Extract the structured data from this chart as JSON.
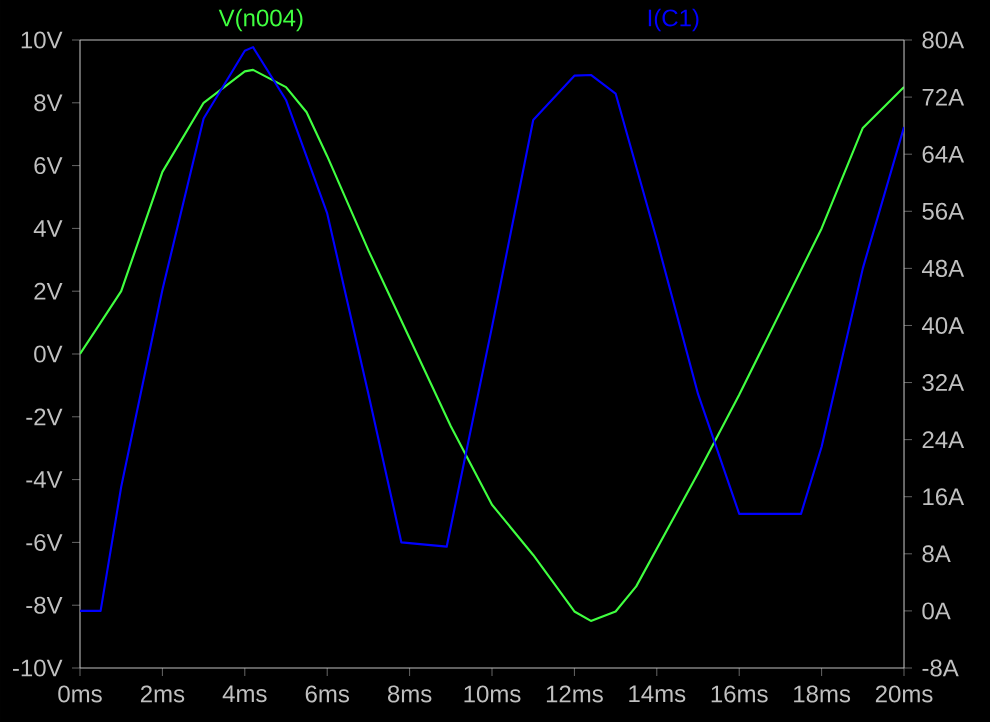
{
  "chart_data": {
    "type": "line",
    "legend": "top",
    "line_style": "solid",
    "xlim": [
      0,
      20
    ],
    "xticks": [
      {
        "value": 0,
        "label": "0ms"
      },
      {
        "value": 2,
        "label": "2ms"
      },
      {
        "value": 4,
        "label": "4ms"
      },
      {
        "value": 6,
        "label": "6ms"
      },
      {
        "value": 8,
        "label": "8ms"
      },
      {
        "value": 10,
        "label": "10ms"
      },
      {
        "value": 12,
        "label": "12ms"
      },
      {
        "value": 14,
        "label": "14ms"
      },
      {
        "value": 16,
        "label": "16ms"
      },
      {
        "value": 18,
        "label": "18ms"
      },
      {
        "value": 20,
        "label": "20ms"
      }
    ],
    "ylim": [
      -10,
      10
    ],
    "yticks": [
      {
        "value": -10,
        "label": "-10V"
      },
      {
        "value": -8,
        "label": "-8V"
      },
      {
        "value": -6,
        "label": "-6V"
      },
      {
        "value": -4,
        "label": "-4V"
      },
      {
        "value": -2,
        "label": "-2V"
      },
      {
        "value": 0,
        "label": "0V"
      },
      {
        "value": 2,
        "label": "2V"
      },
      {
        "value": 4,
        "label": "4V"
      },
      {
        "value": 6,
        "label": "6V"
      },
      {
        "value": 8,
        "label": "8V"
      },
      {
        "value": 10,
        "label": "10V"
      }
    ],
    "y2lim": [
      -8,
      80
    ],
    "y2ticks": [
      {
        "value": -8,
        "label": "-8A"
      },
      {
        "value": 0,
        "label": "0A"
      },
      {
        "value": 8,
        "label": "8A"
      },
      {
        "value": 16,
        "label": "16A"
      },
      {
        "value": 24,
        "label": "24A"
      },
      {
        "value": 32,
        "label": "32A"
      },
      {
        "value": 40,
        "label": "40A"
      },
      {
        "value": 48,
        "label": "48A"
      },
      {
        "value": 56,
        "label": "56A"
      },
      {
        "value": 64,
        "label": "64A"
      },
      {
        "value": 72,
        "label": "72A"
      },
      {
        "value": 80,
        "label": "80A"
      }
    ],
    "series": [
      {
        "name": "V(n004)",
        "color": "#40ff40",
        "x": [
          0,
          0.5,
          1,
          2,
          3,
          4,
          4.2,
          5,
          5.5,
          6,
          7,
          8,
          9,
          10,
          11,
          12,
          12.4,
          13,
          13.5,
          14,
          15,
          16,
          18,
          19,
          20
        ],
        "values": [
          0,
          1,
          2,
          5.8,
          8,
          9,
          9.05,
          8.5,
          7.7,
          6.3,
          3.3,
          0.5,
          -2.3,
          -4.8,
          -6.4,
          -8.2,
          -8.5,
          -8.2,
          -7.4,
          -6.2,
          -3.8,
          -1.3,
          4,
          7.2,
          8.5
        ]
      },
      {
        "name": "I(C1)",
        "color": "#0000ff",
        "axis": "y2",
        "x": [
          0,
          0.5,
          1,
          2,
          3,
          4,
          4.2,
          5,
          6,
          7,
          7.8,
          8.9,
          10,
          11,
          12,
          12.4,
          13,
          14,
          15,
          16,
          17.5,
          18,
          19,
          20
        ],
        "values": [
          0,
          0,
          17.4,
          45,
          69,
          78.5,
          79,
          71.6,
          55.7,
          30.4,
          9.6,
          9,
          39.8,
          68.8,
          75,
          75.1,
          72.5,
          52,
          30.4,
          13.6,
          13.6,
          23,
          48,
          67.8
        ]
      }
    ]
  }
}
